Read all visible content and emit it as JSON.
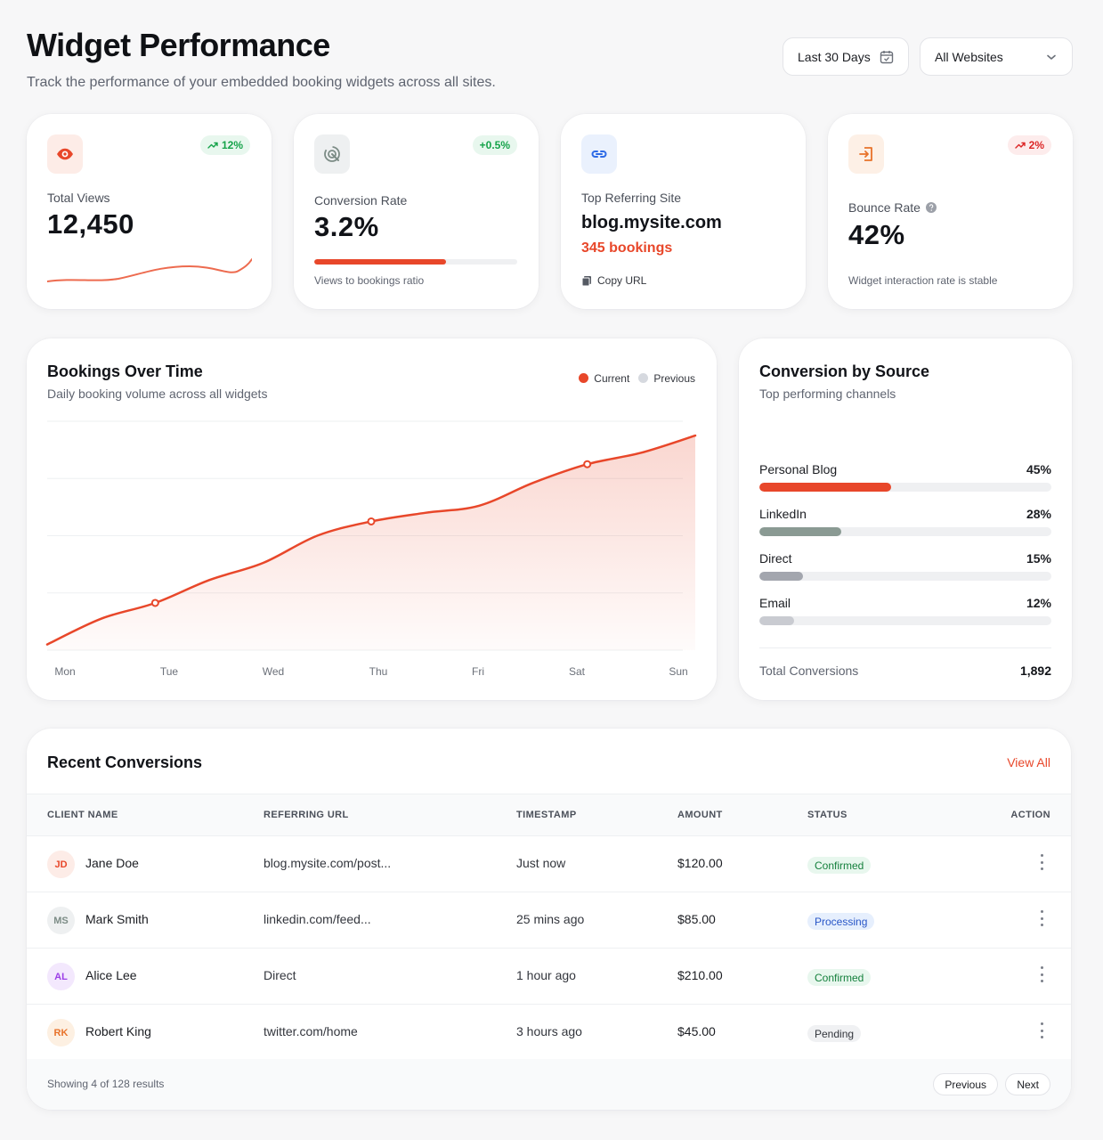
{
  "header": {
    "title": "Widget Performance",
    "subtitle": "Track the performance of your embedded booking widgets across all sites.",
    "date_range": "Last 30 Days",
    "site_filter": "All Websites"
  },
  "stats": {
    "views": {
      "label": "Total Views",
      "value": "12,450",
      "trend": "12%"
    },
    "conversion": {
      "label": "Conversion Rate",
      "value": "3.2%",
      "trend": "+0.5%",
      "note": "Views to bookings ratio",
      "progress": 0.65
    },
    "referrer": {
      "label": "Top Referring Site",
      "value": "blog.mysite.com",
      "bookings": "345 bookings",
      "copy": "Copy URL"
    },
    "bounce": {
      "label": "Bounce Rate",
      "value": "42%",
      "trend": "2%",
      "note": "Widget interaction rate is stable"
    }
  },
  "bookings_chart": {
    "title": "Bookings Over Time",
    "subtitle": "Daily booking volume across all widgets",
    "legend_current": "Current",
    "legend_previous": "Previous"
  },
  "chart_data": {
    "type": "area",
    "title": "Bookings Over Time",
    "categories": [
      "Mon",
      "Tue",
      "Wed",
      "Thu",
      "Fri",
      "Sat",
      "Sun"
    ],
    "series": [
      {
        "name": "Current",
        "x": [
          0,
          0.5,
          1,
          1.5,
          2,
          2.5,
          3,
          3.5,
          4,
          4.5,
          5,
          5.5,
          6
        ],
        "values": [
          4,
          22,
          33,
          49,
          61,
          80,
          90,
          96,
          101,
          117,
          130,
          138,
          150
        ]
      }
    ],
    "highlighted_x": [
      1,
      3,
      5
    ],
    "ylim": [
      0,
      160
    ],
    "grid": true
  },
  "conversion_source": {
    "title": "Conversion by Source",
    "subtitle": "Top performing channels",
    "items": [
      {
        "label": "Personal Blog",
        "pct": "45%",
        "value": 0.45,
        "color": "#e8472a"
      },
      {
        "label": "LinkedIn",
        "pct": "28%",
        "value": 0.28,
        "color": "#8a9a93"
      },
      {
        "label": "Direct",
        "pct": "15%",
        "value": 0.15,
        "color": "#a3a6ae"
      },
      {
        "label": "Email",
        "pct": "12%",
        "value": 0.12,
        "color": "#c9cbd1"
      }
    ],
    "total_label": "Total Conversions",
    "total_value": "1,892"
  },
  "recent": {
    "title": "Recent Conversions",
    "view_all": "View All",
    "columns": [
      "CLIENT NAME",
      "REFERRING URL",
      "TIMESTAMP",
      "AMOUNT",
      "STATUS",
      "ACTION"
    ],
    "rows": [
      {
        "initials": "JD",
        "name": "Jane Doe",
        "url": "blog.mysite.com/post...",
        "time": "Just now",
        "amount": "$120.00",
        "status": "Confirmed"
      },
      {
        "initials": "MS",
        "name": "Mark Smith",
        "url": "linkedin.com/feed...",
        "time": "25 mins ago",
        "amount": "$85.00",
        "status": "Processing"
      },
      {
        "initials": "AL",
        "name": "Alice Lee",
        "url": "Direct",
        "time": "1 hour ago",
        "amount": "$210.00",
        "status": "Confirmed"
      },
      {
        "initials": "RK",
        "name": "Robert King",
        "url": "twitter.com/home",
        "time": "3 hours ago",
        "amount": "$45.00",
        "status": "Pending"
      }
    ],
    "showing": "Showing 4 of 128 results",
    "prev": "Previous",
    "next": "Next"
  },
  "colors": {
    "accent": "#e8472a",
    "positive": "#16a34a",
    "positive_bg": "#e8f7ee",
    "negative": "#dc2626",
    "negative_bg": "#fdecec"
  }
}
